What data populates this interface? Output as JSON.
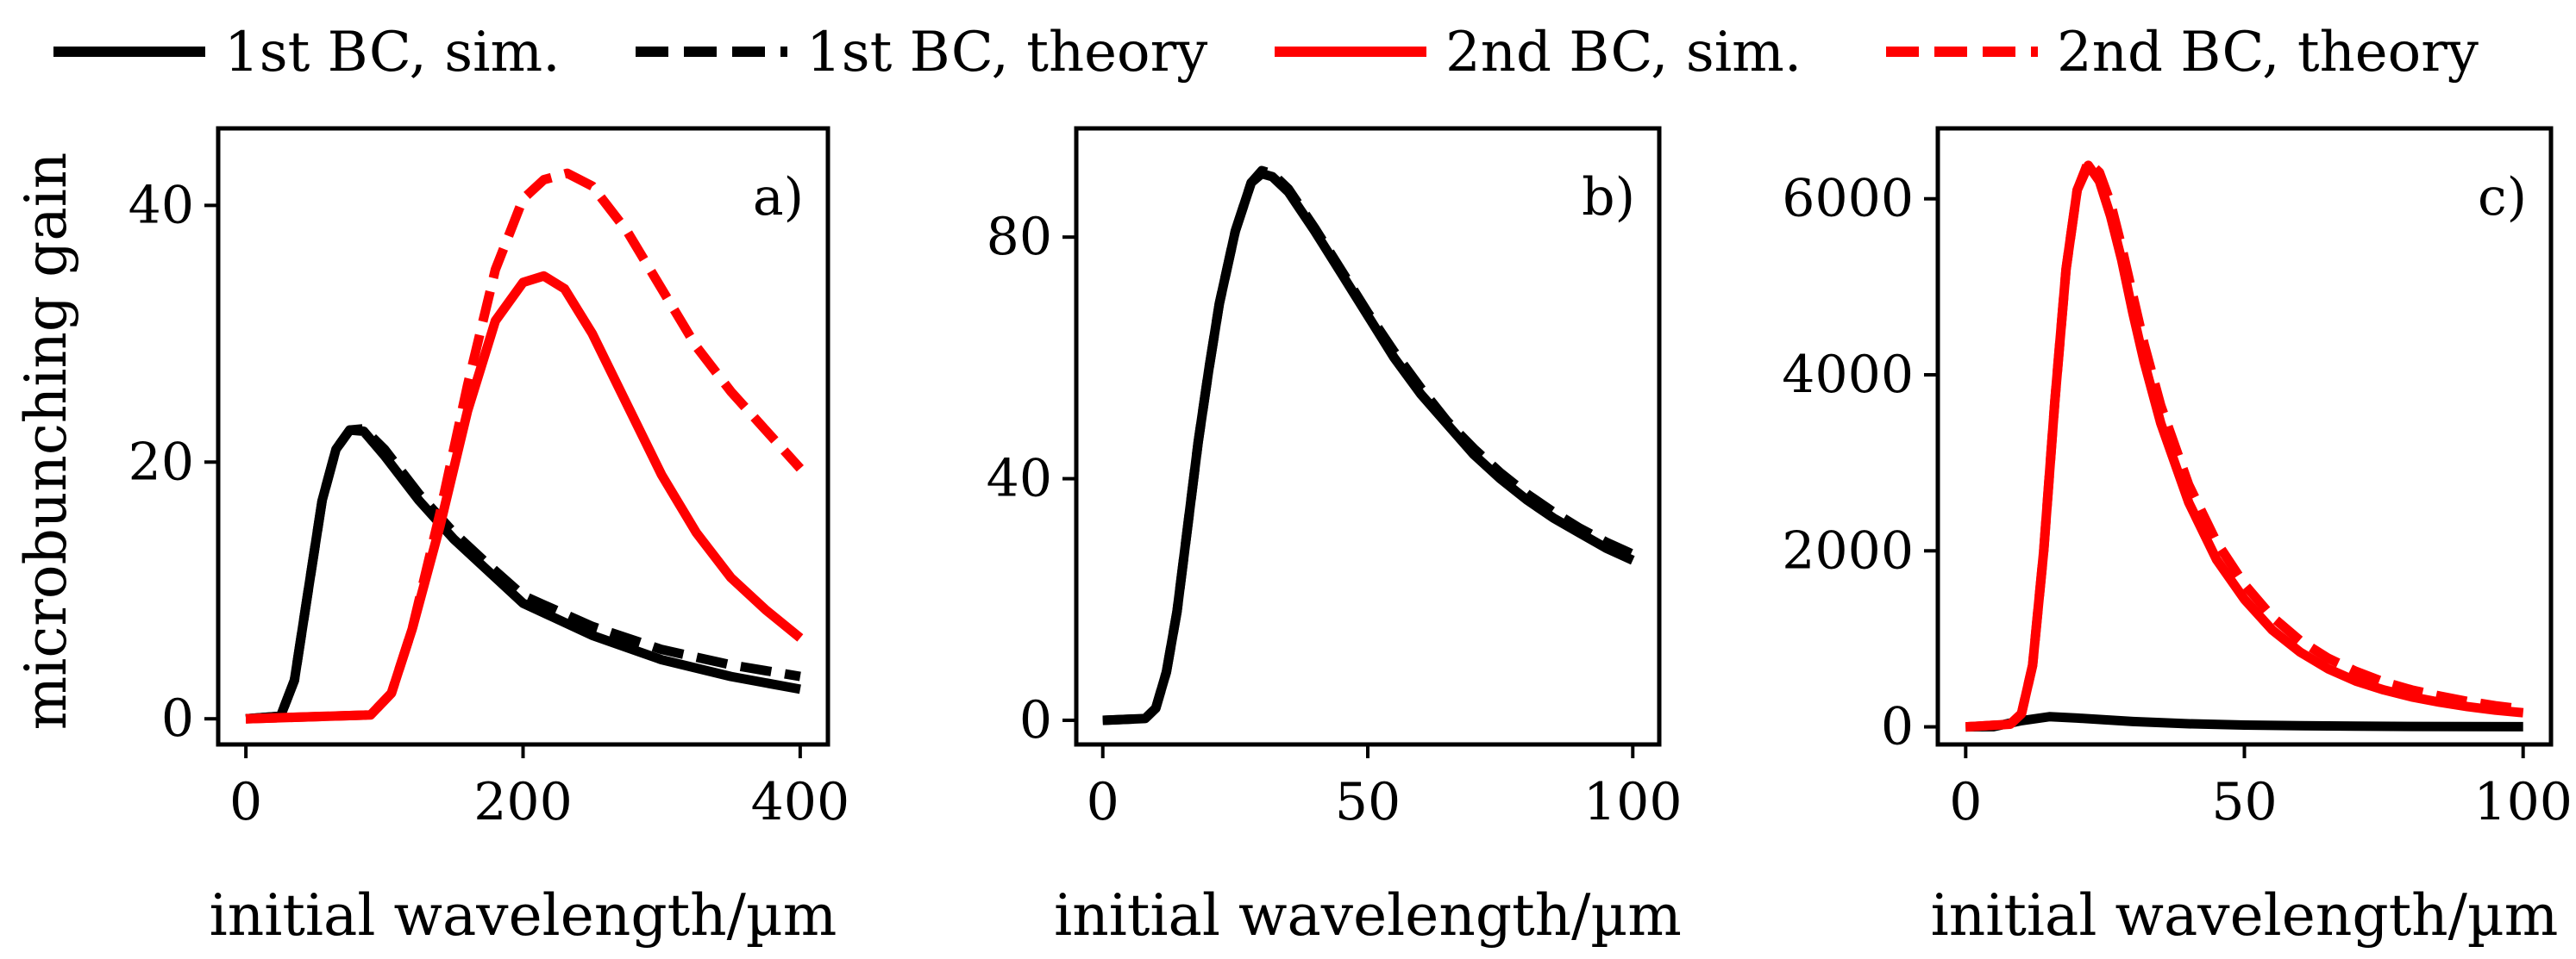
{
  "legend": [
    {
      "label": "1st BC, sim.",
      "color": "#000000",
      "dashed": false
    },
    {
      "label": "1st BC, theory",
      "color": "#000000",
      "dashed": true
    },
    {
      "label": "2nd BC, sim.",
      "color": "#ff0000",
      "dashed": false
    },
    {
      "label": "2nd BC, theory",
      "color": "#ff0000",
      "dashed": true
    }
  ],
  "ylabel": "microbunching gain",
  "chart_data": [
    {
      "type": "line",
      "panel_label": "a)",
      "xlabel": "initial wavelength/µm",
      "ylabel": "microbunching gain",
      "xlim": [
        -20,
        420
      ],
      "ylim": [
        -2,
        46
      ],
      "xticks": [
        0,
        200,
        400
      ],
      "yticks": [
        0,
        20,
        40
      ],
      "series": [
        {
          "name": "1st BC, sim.",
          "color": "#000000",
          "dashed": false,
          "x": [
            0,
            25,
            35,
            45,
            55,
            65,
            75,
            85,
            100,
            125,
            150,
            175,
            200,
            250,
            300,
            350,
            400
          ],
          "y": [
            0,
            0.2,
            3,
            10,
            17,
            21,
            22.5,
            22.4,
            20.5,
            17,
            14,
            11.5,
            9,
            6.5,
            4.6,
            3.3,
            2.3
          ]
        },
        {
          "name": "1st BC, theory",
          "color": "#000000",
          "dashed": true,
          "x": [
            0,
            25,
            35,
            45,
            55,
            65,
            75,
            85,
            100,
            125,
            150,
            175,
            200,
            250,
            300,
            350,
            400
          ],
          "y": [
            0,
            0.2,
            3,
            10,
            17,
            21,
            22.5,
            22.6,
            21,
            17.5,
            14.5,
            12,
            9.6,
            7.2,
            5.4,
            4.2,
            3.3
          ]
        },
        {
          "name": "2nd BC, sim.",
          "color": "#ff0000",
          "dashed": false,
          "x": [
            0,
            90,
            105,
            120,
            140,
            160,
            180,
            200,
            215,
            230,
            250,
            275,
            300,
            325,
            350,
            375,
            400
          ],
          "y": [
            0,
            0.3,
            2,
            7,
            15,
            24,
            31,
            34,
            34.5,
            33.5,
            30,
            24.5,
            19,
            14.5,
            11,
            8.5,
            6.3
          ]
        },
        {
          "name": "2nd BC, theory",
          "color": "#ff0000",
          "dashed": true,
          "x": [
            0,
            90,
            105,
            120,
            140,
            160,
            180,
            200,
            215,
            232,
            250,
            275,
            300,
            325,
            350,
            375,
            400
          ],
          "y": [
            0,
            0.3,
            2,
            7,
            16,
            26,
            35,
            40.5,
            42,
            42.5,
            41.5,
            38,
            33.5,
            29,
            25.5,
            22.5,
            19.5
          ]
        }
      ]
    },
    {
      "type": "line",
      "panel_label": "b)",
      "xlabel": "initial wavelength/µm",
      "ylabel": "",
      "xlim": [
        -5,
        105
      ],
      "ylim": [
        -4,
        98
      ],
      "xticks": [
        0,
        50,
        100
      ],
      "yticks": [
        0,
        40,
        80
      ],
      "series": [
        {
          "name": "1st BC, sim.",
          "color": "#000000",
          "dashed": false,
          "x": [
            0,
            8,
            10,
            12,
            14,
            16,
            18,
            20,
            22,
            25,
            28,
            30,
            32,
            35,
            40,
            45,
            50,
            55,
            60,
            65,
            70,
            75,
            80,
            85,
            90,
            95,
            100
          ],
          "y": [
            0,
            0.3,
            2,
            8,
            18,
            32,
            46,
            58,
            69,
            81,
            89,
            90.5,
            90,
            87.5,
            81,
            74,
            67,
            60,
            54,
            49,
            44,
            40,
            36.5,
            33.5,
            31,
            28.5,
            26.5
          ]
        },
        {
          "name": "1st BC, theory",
          "color": "#000000",
          "dashed": true,
          "x": [
            0,
            8,
            10,
            12,
            14,
            16,
            18,
            20,
            22,
            25,
            28,
            30,
            32,
            35,
            40,
            45,
            50,
            55,
            60,
            65,
            70,
            75,
            80,
            85,
            90,
            95,
            100
          ],
          "y": [
            0,
            0.3,
            2,
            8,
            18,
            32,
            46,
            58,
            69,
            81,
            89,
            91,
            90.5,
            88,
            81.5,
            74.5,
            67.5,
            61,
            55,
            49.5,
            45,
            41,
            37.5,
            34.5,
            31.8,
            29.5,
            27.5
          ]
        }
      ]
    },
    {
      "type": "line",
      "panel_label": "c)",
      "xlabel": "initial wavelength/µm",
      "ylabel": "",
      "xlim": [
        -5,
        105
      ],
      "ylim": [
        -200,
        6800
      ],
      "xticks": [
        0,
        50,
        100
      ],
      "yticks": [
        0,
        2000,
        4000,
        6000
      ],
      "series": [
        {
          "name": "1st BC, sim.",
          "color": "#000000",
          "dashed": false,
          "x": [
            0,
            5,
            10,
            15,
            20,
            25,
            30,
            40,
            50,
            60,
            70,
            80,
            90,
            100
          ],
          "y": [
            0,
            2,
            70,
            115,
            100,
            80,
            60,
            35,
            20,
            12,
            8,
            5,
            3,
            2
          ]
        },
        {
          "name": "2nd BC, sim.",
          "color": "#ff0000",
          "dashed": false,
          "x": [
            0,
            8,
            10,
            12,
            14,
            16,
            18,
            20,
            22,
            24,
            26,
            28,
            30,
            32,
            35,
            40,
            45,
            50,
            55,
            60,
            65,
            70,
            75,
            80,
            85,
            90,
            95,
            100
          ],
          "y": [
            0,
            30,
            150,
            700,
            2000,
            3700,
            5200,
            6100,
            6380,
            6200,
            5800,
            5300,
            4700,
            4150,
            3450,
            2550,
            1900,
            1450,
            1100,
            850,
            660,
            520,
            420,
            340,
            280,
            230,
            190,
            160
          ]
        },
        {
          "name": "2nd BC, theory",
          "color": "#ff0000",
          "dashed": true,
          "x": [
            0,
            8,
            10,
            12,
            14,
            16,
            18,
            20,
            22,
            24,
            26,
            28,
            30,
            32,
            35,
            40,
            45,
            50,
            55,
            60,
            65,
            70,
            75,
            80,
            85,
            90,
            95,
            100
          ],
          "y": [
            0,
            30,
            150,
            700,
            2000,
            3700,
            5200,
            6100,
            6420,
            6300,
            5950,
            5450,
            4900,
            4350,
            3650,
            2750,
            2100,
            1620,
            1250,
            980,
            780,
            630,
            510,
            420,
            350,
            290,
            240,
            200
          ]
        }
      ]
    }
  ]
}
